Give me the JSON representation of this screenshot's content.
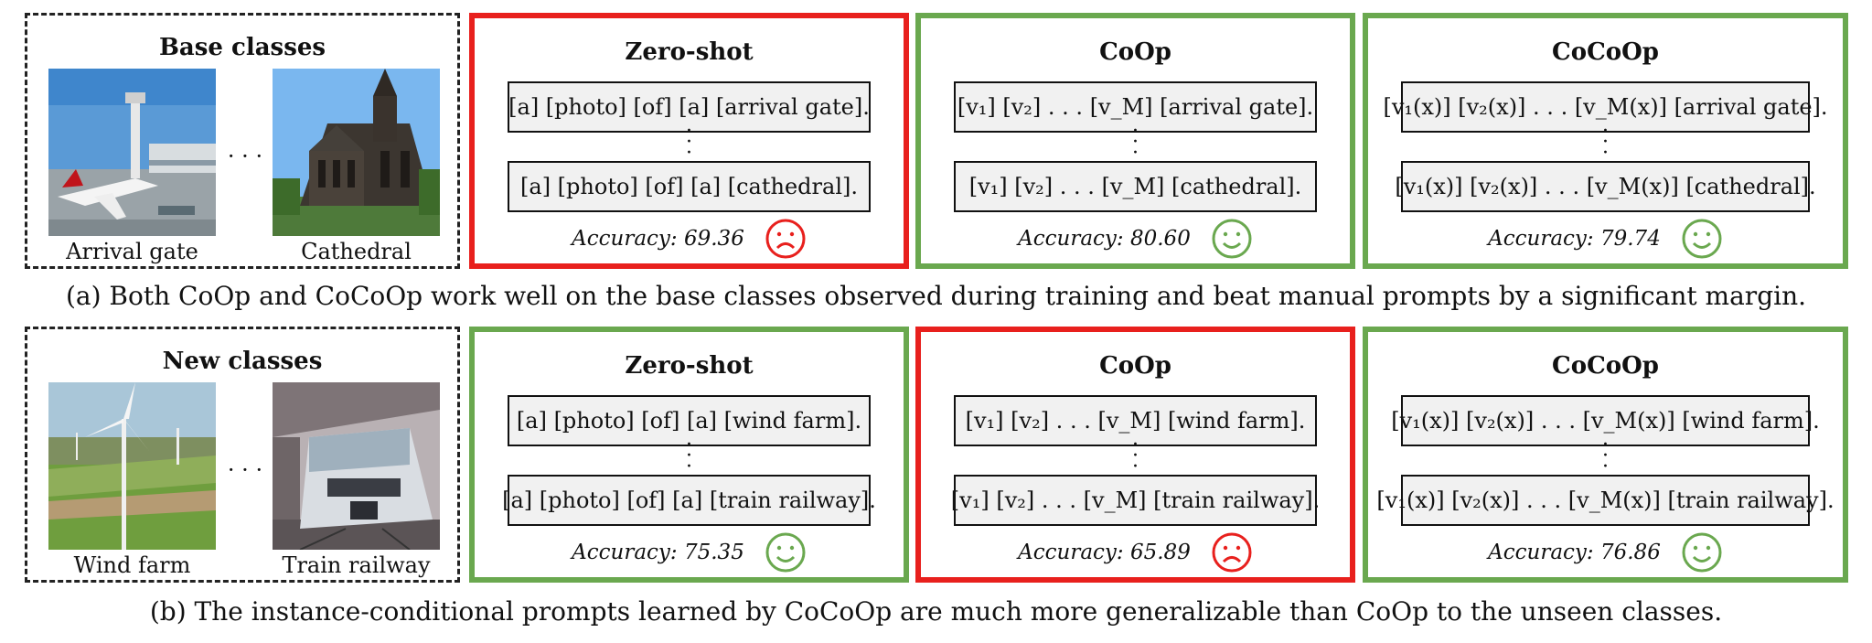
{
  "rows": [
    {
      "heading": "Base classes",
      "classes": [
        {
          "label": "Arrival gate",
          "image": "airport-photo"
        },
        {
          "label": "Cathedral",
          "image": "cathedral-photo"
        }
      ],
      "hdots": "· · ·",
      "panels": [
        {
          "title": "Zero-shot",
          "prompt1": "[a] [photo] [of] [a] [arrival gate].",
          "prompt2": "[a] [photo] [of] [a] [cathedral].",
          "accuracy": "Accuracy: 69.36",
          "mood": "sad"
        },
        {
          "title": "CoOp",
          "prompt1": "[v₁] [v₂] . . . [v_M] [arrival gate].",
          "prompt2": "[v₁] [v₂] . . . [v_M] [cathedral].",
          "accuracy": "Accuracy: 80.60",
          "mood": "happy"
        },
        {
          "title": "CoCoOp",
          "prompt1": "[v₁(x)] [v₂(x)] . . . [v_M(x)] [arrival gate].",
          "prompt2": "[v₁(x)] [v₂(x)] . . . [v_M(x)] [cathedral].",
          "accuracy": "Accuracy: 79.74",
          "mood": "happy"
        }
      ],
      "caption": "(a) Both CoOp and CoCoOp work well on the base classes observed during training and beat manual prompts by a significant margin."
    },
    {
      "heading": "New classes",
      "classes": [
        {
          "label": "Wind farm",
          "image": "wind-farm-photo"
        },
        {
          "label": "Train railway",
          "image": "train-photo"
        }
      ],
      "hdots": "· · ·",
      "panels": [
        {
          "title": "Zero-shot",
          "prompt1": "[a] [photo] [of] [a] [wind farm].",
          "prompt2": "[a] [photo] [of] [a] [train railway].",
          "accuracy": "Accuracy: 75.35",
          "mood": "happy"
        },
        {
          "title": "CoOp",
          "prompt1": "[v₁] [v₂] . . . [v_M] [wind farm].",
          "prompt2": "[v₁] [v₂] . . . [v_M] [train railway].",
          "accuracy": "Accuracy: 65.89",
          "mood": "sad"
        },
        {
          "title": "CoCoOp",
          "prompt1": "[v₁(x)] [v₂(x)] . . . [v_M(x)] [wind farm].",
          "prompt2": "[v₁(x)] [v₂(x)] . . . [v_M(x)] [train railway].",
          "accuracy": "Accuracy: 76.86",
          "mood": "happy"
        }
      ],
      "caption": "(b) The instance-conditional prompts learned by CoCoOp are much more generalizable than CoOp to the unseen classes."
    }
  ],
  "vdots": "·\n·\n·",
  "colors": {
    "good": "#6aa84f",
    "bad": "#e8201d"
  }
}
